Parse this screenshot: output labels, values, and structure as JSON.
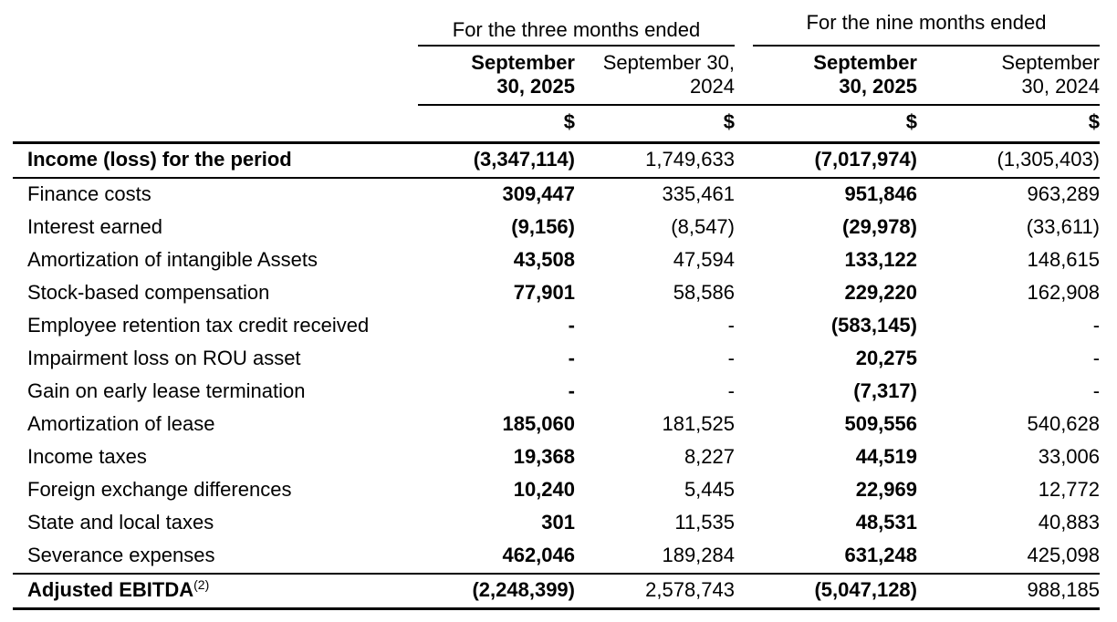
{
  "table": {
    "col_groups": [
      {
        "label": "For the three months ended"
      },
      {
        "label": "For the nine months ended"
      }
    ],
    "columns": [
      {
        "header_line1": "September",
        "header_line2": "30, 2025",
        "bold": true,
        "currency": "$"
      },
      {
        "header_line1": "September 30,",
        "header_line2": "2024",
        "bold": false,
        "currency": "$"
      },
      {
        "header_line1": "September",
        "header_line2": "30, 2025",
        "bold": true,
        "currency": "$"
      },
      {
        "header_line1": "September",
        "header_line2": "30, 2024",
        "bold": false,
        "currency": "$"
      }
    ],
    "rows": [
      {
        "label": "Income (loss) for the period",
        "style": "total",
        "values": [
          "(3,347,114)",
          "1,749,633",
          "(7,017,974)",
          "(1,305,403)"
        ]
      },
      {
        "label": "Finance costs",
        "values": [
          "309,447",
          "335,461",
          "951,846",
          "963,289"
        ]
      },
      {
        "label": "Interest earned",
        "values": [
          "(9,156)",
          "(8,547)",
          "(29,978)",
          "(33,611)"
        ]
      },
      {
        "label": "Amortization of intangible Assets",
        "values": [
          "43,508",
          "47,594",
          "133,122",
          "148,615"
        ]
      },
      {
        "label": "Stock-based compensation",
        "values": [
          "77,901",
          "58,586",
          "229,220",
          "162,908"
        ]
      },
      {
        "label": "Employee retention tax credit received",
        "values": [
          "-",
          "-",
          "(583,145)",
          "-"
        ]
      },
      {
        "label": "Impairment loss on ROU asset",
        "values": [
          "-",
          "-",
          "20,275",
          "-"
        ]
      },
      {
        "label": "Gain on early lease termination",
        "values": [
          "-",
          "-",
          "(7,317)",
          "-"
        ]
      },
      {
        "label": "Amortization of lease",
        "values": [
          "185,060",
          "181,525",
          "509,556",
          "540,628"
        ]
      },
      {
        "label": "Income taxes",
        "values": [
          "19,368",
          "8,227",
          "44,519",
          "33,006"
        ]
      },
      {
        "label": "Foreign exchange differences",
        "values": [
          "10,240",
          "5,445",
          "22,969",
          "12,772"
        ]
      },
      {
        "label": "State and local taxes",
        "values": [
          "301",
          "11,535",
          "48,531",
          "40,883"
        ]
      },
      {
        "label": "Severance expenses",
        "values": [
          "462,046",
          "189,284",
          "631,248",
          "425,098"
        ]
      },
      {
        "label": "Adjusted EBITDA",
        "label_superscript": "(2)",
        "style": "total",
        "values": [
          "(2,248,399)",
          "2,578,743",
          "(5,047,128)",
          "988,185"
        ]
      }
    ]
  }
}
